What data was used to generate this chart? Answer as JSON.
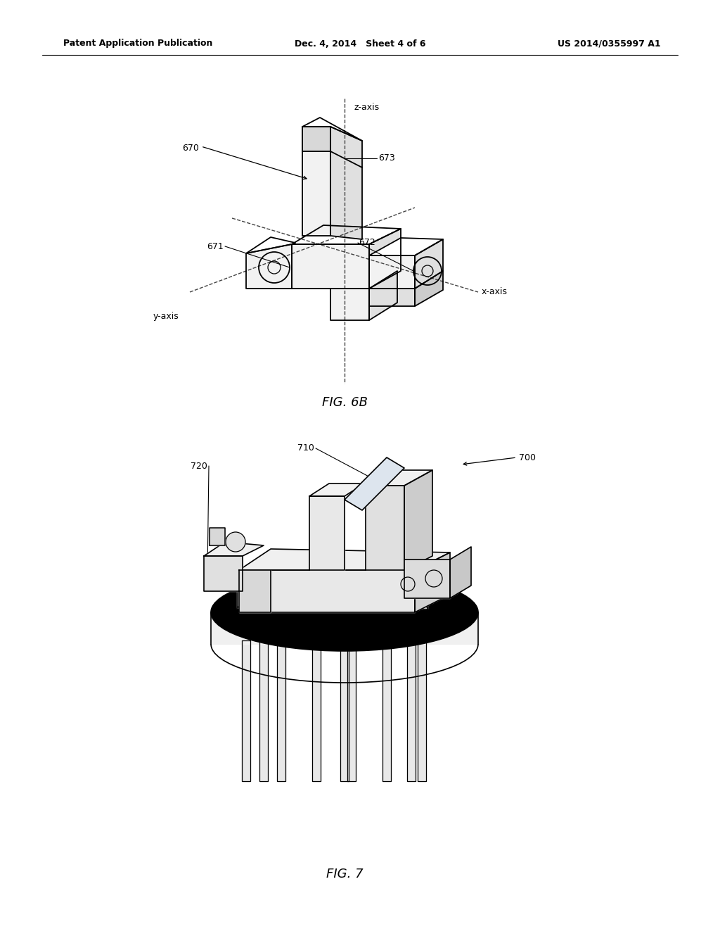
{
  "bg_color": "#ffffff",
  "header_left": "Patent Application Publication",
  "header_mid": "Dec. 4, 2014   Sheet 4 of 6",
  "header_right": "US 2014/0355997 A1",
  "fig6b_label": "FIG. 6B",
  "fig7_label": "FIG. 7"
}
